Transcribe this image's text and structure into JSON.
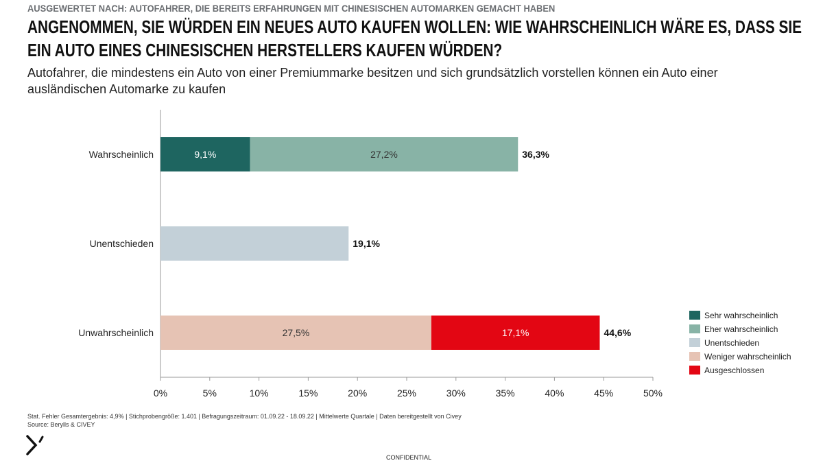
{
  "kicker": "AUSGEWERTET NACH: AUTOFAHRER, DIE BEREITS ERFAHRUNGEN MIT CHINESISCHEN AUTOMARKEN GEMACHT HABEN",
  "footer": {
    "note": "Stat. Fehler Gesamtergebnis: 4,9% | Stichprobengröße: 1.401 | Befragungszeitraum: 01.09.22 - 18.09.22 | Mittelwerte Quartale | Daten bereitgestellt von Civey",
    "source": "Source: Berylls & CIVEY",
    "confidential": "CONFIDENTIAL",
    "logo_text": "Berylls"
  },
  "chart_data": {
    "type": "bar",
    "orientation": "horizontal-stacked",
    "title": "ANGENOMMEN, SIE WÜRDEN EIN NEUES AUTO KAUFEN WOLLEN: WIE WAHRSCHEINLICH WÄRE ES, DASS SIE EIN AUTO EINES CHINESISCHEN HERSTELLERS KAUFEN WÜRDEN?",
    "subtitle": "Autofahrer, die mindestens ein Auto von einer Premiummarke besitzen und sich grundsätzlich vorstellen können ein Auto einer ausländischen Automarke zu kaufen",
    "categories": [
      "Wahrscheinlich",
      "Unentschieden",
      "Unwahrscheinlich"
    ],
    "series": [
      {
        "name": "Sehr wahrscheinlich",
        "color": "#1e6560",
        "values": [
          9.1,
          0,
          0
        ],
        "labels": [
          "9,1%",
          "",
          ""
        ]
      },
      {
        "name": "Eher wahrscheinlich",
        "color": "#88b3a6",
        "values": [
          27.2,
          0,
          0
        ],
        "labels": [
          "27,2%",
          "",
          ""
        ]
      },
      {
        "name": "Unentschieden",
        "color": "#c3d0d8",
        "values": [
          0,
          19.1,
          0
        ],
        "labels": [
          "",
          "",
          ""
        ]
      },
      {
        "name": "Weniger wahrscheinlich",
        "color": "#e6c3b4",
        "values": [
          0,
          0,
          27.5
        ],
        "labels": [
          "",
          "",
          "27,5%"
        ]
      },
      {
        "name": "Ausgeschlossen",
        "color": "#e30613",
        "values": [
          0,
          0,
          17.1
        ],
        "labels": [
          "",
          "",
          "17,1%"
        ]
      }
    ],
    "totals": [
      "36,3%",
      "19,1%",
      "44,6%"
    ],
    "xlim": [
      0,
      50
    ],
    "xticks": [
      "0%",
      "5%",
      "10%",
      "15%",
      "20%",
      "25%",
      "30%",
      "35%",
      "40%",
      "45%",
      "50%"
    ],
    "grid": false,
    "legend": "right"
  }
}
